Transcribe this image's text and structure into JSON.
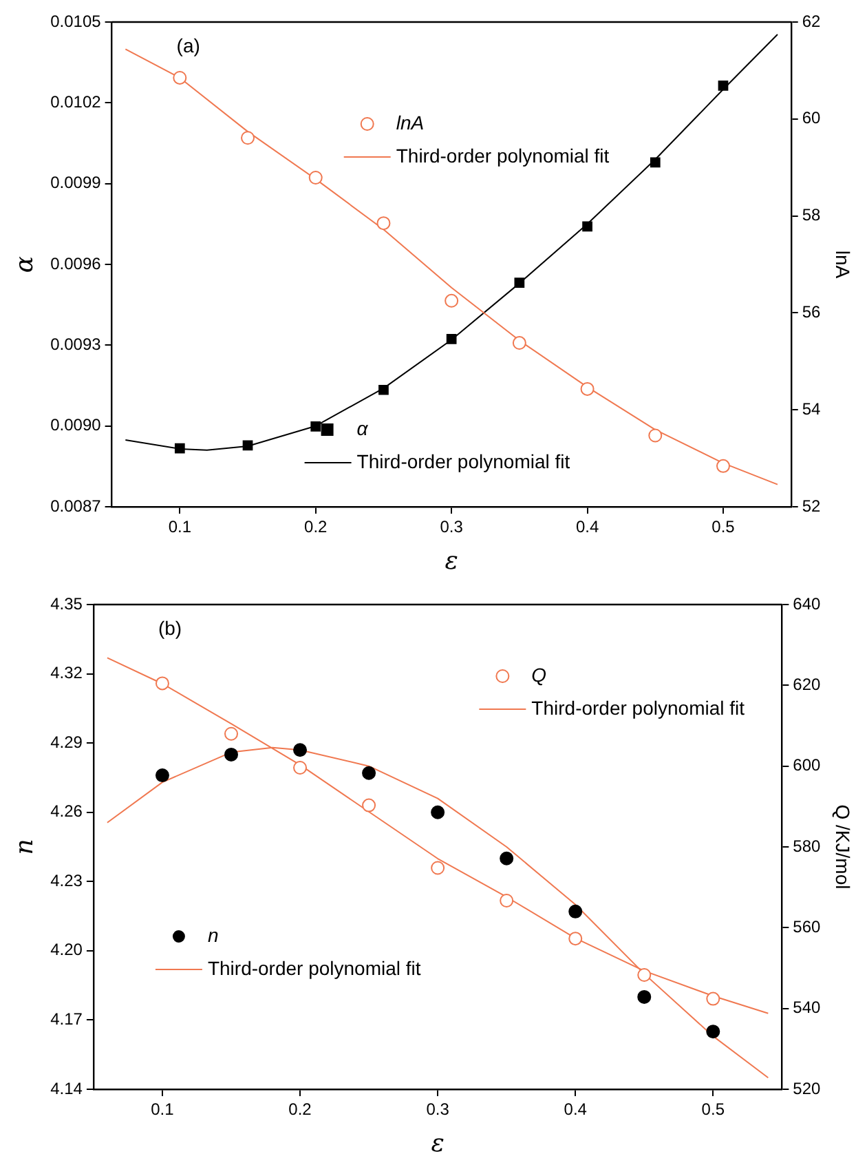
{
  "chart_data": [
    {
      "type": "scatter",
      "xlabel": "ε",
      "ylabel": "α",
      "y2label": "lnA",
      "annotations": [
        "(a)"
      ],
      "xlim": [
        0.05,
        0.55
      ],
      "xticks": [
        0.1,
        0.2,
        0.3,
        0.4,
        0.5
      ],
      "ylim": [
        0.0087,
        0.0105
      ],
      "yticks": [
        0.0087,
        {
          "value": 0.009,
          "label": "0.0090"
        },
        0.0093,
        0.0096,
        0.0099,
        0.0102,
        0.0105
      ],
      "y2lim": [
        52,
        62
      ],
      "y2ticks": [
        52,
        54,
        56,
        58,
        60,
        62
      ],
      "grid": false,
      "legend": "right",
      "series": [
        {
          "name": "lnA",
          "type": "scatter",
          "axis": "y2",
          "marker": "circle",
          "color": "#f07850",
          "x": [
            0.1,
            0.15,
            0.2,
            0.25,
            0.3,
            0.35,
            0.4,
            0.45,
            0.5
          ],
          "values": [
            60.85,
            59.61,
            58.79,
            57.85,
            56.25,
            55.38,
            54.43,
            53.47,
            52.84
          ]
        },
        {
          "name": "Third-order polynomial fit",
          "type": "line",
          "axis": "y2",
          "color": "#f07850",
          "x": [
            0.06,
            0.1,
            0.15,
            0.2,
            0.25,
            0.3,
            0.35,
            0.4,
            0.45,
            0.5,
            0.54
          ],
          "values": [
            61.44,
            60.85,
            59.74,
            58.76,
            57.72,
            56.52,
            55.43,
            54.47,
            53.59,
            52.9,
            52.46
          ]
        },
        {
          "name": "α",
          "type": "scatter",
          "axis": "y",
          "marker": "square",
          "color": "#000000",
          "x": [
            0.1,
            0.15,
            0.2,
            0.25,
            0.3,
            0.35,
            0.4,
            0.45,
            0.5
          ],
          "values": [
            0.008917,
            0.008928,
            0.008998,
            0.009134,
            0.009323,
            0.009532,
            0.009741,
            0.009979,
            0.010264
          ]
        },
        {
          "name": "Third-order polynomial fit",
          "type": "line",
          "axis": "y",
          "color": "#000000",
          "x": [
            0.06,
            0.1,
            0.12,
            0.15,
            0.2,
            0.25,
            0.3,
            0.35,
            0.4,
            0.45,
            0.5,
            0.54
          ],
          "values": [
            0.008948,
            0.008915,
            0.00891,
            0.008925,
            0.009,
            0.00914,
            0.00932,
            0.00953,
            0.00975,
            0.00999,
            0.01025,
            0.010454
          ]
        }
      ]
    },
    {
      "type": "scatter",
      "xlabel": "ε",
      "ylabel": "n",
      "y2label": "Q /KJ/mol",
      "annotations": [
        "(b)"
      ],
      "xlim": [
        0.05,
        0.55
      ],
      "xticks": [
        0.1,
        0.2,
        0.3,
        0.4,
        0.5
      ],
      "ylim": [
        4.14,
        4.35
      ],
      "yticks": [
        4.14,
        4.17,
        {
          "value": 4.2,
          "label": "4.20"
        },
        4.23,
        4.26,
        4.29,
        4.32,
        4.35
      ],
      "y2lim": [
        520,
        640
      ],
      "y2ticks": [
        520,
        540,
        560,
        580,
        600,
        620,
        640
      ],
      "grid": false,
      "legend": "top right",
      "series": [
        {
          "name": "Q",
          "type": "scatter",
          "axis": "y2",
          "marker": "circle",
          "color": "#f07850",
          "x": [
            0.1,
            0.15,
            0.2,
            0.25,
            0.3,
            0.35,
            0.4,
            0.45,
            0.5
          ],
          "values": [
            620.5,
            608.0,
            599.6,
            590.3,
            574.8,
            566.7,
            557.3,
            548.3,
            542.4
          ]
        },
        {
          "name": "Third-order polynomial fit",
          "type": "line",
          "axis": "y2",
          "color": "#f07850",
          "x": [
            0.06,
            0.1,
            0.15,
            0.2,
            0.25,
            0.3,
            0.35,
            0.4,
            0.45,
            0.5,
            0.54
          ],
          "values": [
            626.8,
            620.4,
            610.5,
            600.3,
            588.7,
            577.1,
            567.6,
            557.4,
            549.3,
            543.1,
            538.8
          ]
        },
        {
          "name": "n",
          "type": "scatter",
          "axis": "y",
          "marker": "circle",
          "color": "#000000",
          "x": [
            0.1,
            0.15,
            0.2,
            0.25,
            0.3,
            0.35,
            0.4,
            0.45,
            0.5
          ],
          "values": [
            4.276,
            4.285,
            4.287,
            4.277,
            4.26,
            4.24,
            4.217,
            4.18,
            4.165
          ]
        },
        {
          "name": "Third-order polynomial fit",
          "type": "line",
          "axis": "y",
          "color": "#f07850",
          "x": [
            0.06,
            0.1,
            0.15,
            0.18,
            0.2,
            0.25,
            0.3,
            0.35,
            0.4,
            0.45,
            0.5,
            0.54
          ],
          "values": [
            4.2555,
            4.273,
            4.286,
            4.288,
            4.287,
            4.28,
            4.266,
            4.245,
            4.22,
            4.19,
            4.163,
            4.145
          ]
        }
      ]
    }
  ]
}
